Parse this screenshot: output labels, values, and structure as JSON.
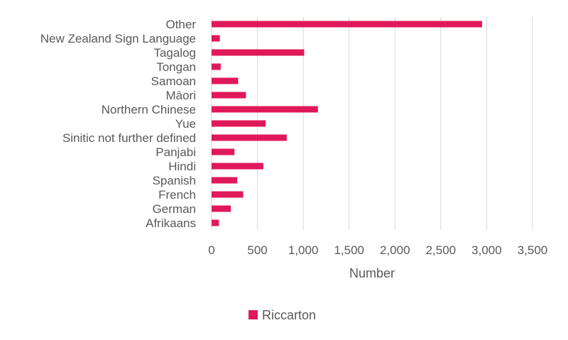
{
  "chart_data": {
    "type": "bar",
    "orientation": "horizontal",
    "categories": [
      "Other",
      "New Zealand Sign Language",
      "Tagalog",
      "Tongan",
      "Samoan",
      "Māori",
      "Northern Chinese",
      "Yue",
      "Sinitic not further defined",
      "Panjabi",
      "Hindi",
      "Spanish",
      "French",
      "German",
      "Afrikaans"
    ],
    "series": [
      {
        "name": "Riccarton",
        "color": "#e0195a",
        "values": [
          2950,
          90,
          1010,
          100,
          290,
          375,
          1160,
          590,
          820,
          250,
          565,
          280,
          345,
          210,
          80
        ]
      }
    ],
    "xlabel": "Number",
    "ylabel": "",
    "xlim": [
      0,
      3500
    ],
    "xticks": [
      0,
      500,
      1000,
      1500,
      2000,
      2500,
      3000,
      3500
    ],
    "xtick_labels": [
      "0",
      "500",
      "1,000",
      "1,500",
      "2,000",
      "2,500",
      "3,000",
      "3,500"
    ],
    "grid": "vertical",
    "legend_position": "bottom"
  }
}
